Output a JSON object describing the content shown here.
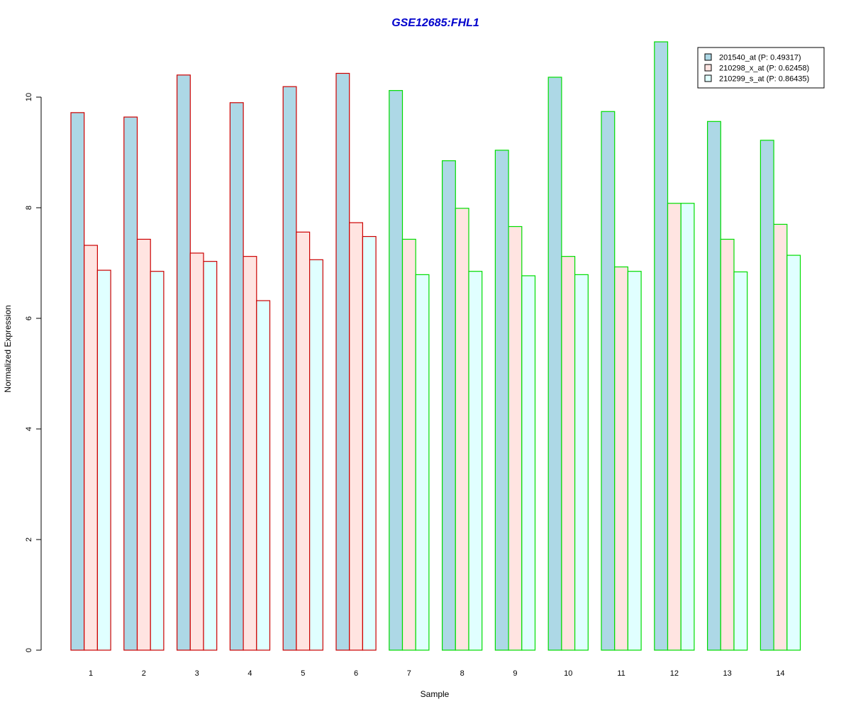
{
  "chart_data": {
    "type": "bar",
    "title": "GSE12685:FHL1",
    "xlabel": "Sample",
    "ylabel": "Normalized Expression",
    "ylim": [
      0,
      11
    ],
    "yticks": [
      "0",
      "2",
      "4",
      "6",
      "8",
      "10"
    ],
    "categories": [
      "1",
      "2",
      "3",
      "4",
      "5",
      "6",
      "7",
      "8",
      "9",
      "10",
      "11",
      "12",
      "13",
      "14"
    ],
    "group_border_colors": [
      "#cc0000",
      "#cc0000",
      "#cc0000",
      "#cc0000",
      "#cc0000",
      "#cc0000",
      "#00dd00",
      "#00dd00",
      "#00dd00",
      "#00dd00",
      "#00dd00",
      "#00dd00",
      "#00dd00",
      "#00dd00"
    ],
    "legend_position": "top-right",
    "grid": false,
    "series": [
      {
        "name": "201540_at (P: 0.49317)",
        "color": "#add8e6",
        "values": [
          9.72,
          9.64,
          10.4,
          9.9,
          10.19,
          10.43,
          10.12,
          8.85,
          9.04,
          10.36,
          9.74,
          11.0,
          9.56,
          9.22
        ]
      },
      {
        "name": "210298_x_at (P: 0.62458)",
        "color": "#ffe4e1",
        "values": [
          7.32,
          7.43,
          7.18,
          7.12,
          7.56,
          7.73,
          7.43,
          7.99,
          7.66,
          7.12,
          6.93,
          8.08,
          7.43,
          7.7
        ]
      },
      {
        "name": "210299_s_at (P: 0.86435)",
        "color": "#e0ffff",
        "values": [
          6.87,
          6.85,
          7.03,
          6.32,
          7.06,
          7.48,
          6.79,
          6.85,
          6.77,
          6.79,
          6.85,
          8.08,
          6.84,
          7.14
        ]
      }
    ]
  }
}
